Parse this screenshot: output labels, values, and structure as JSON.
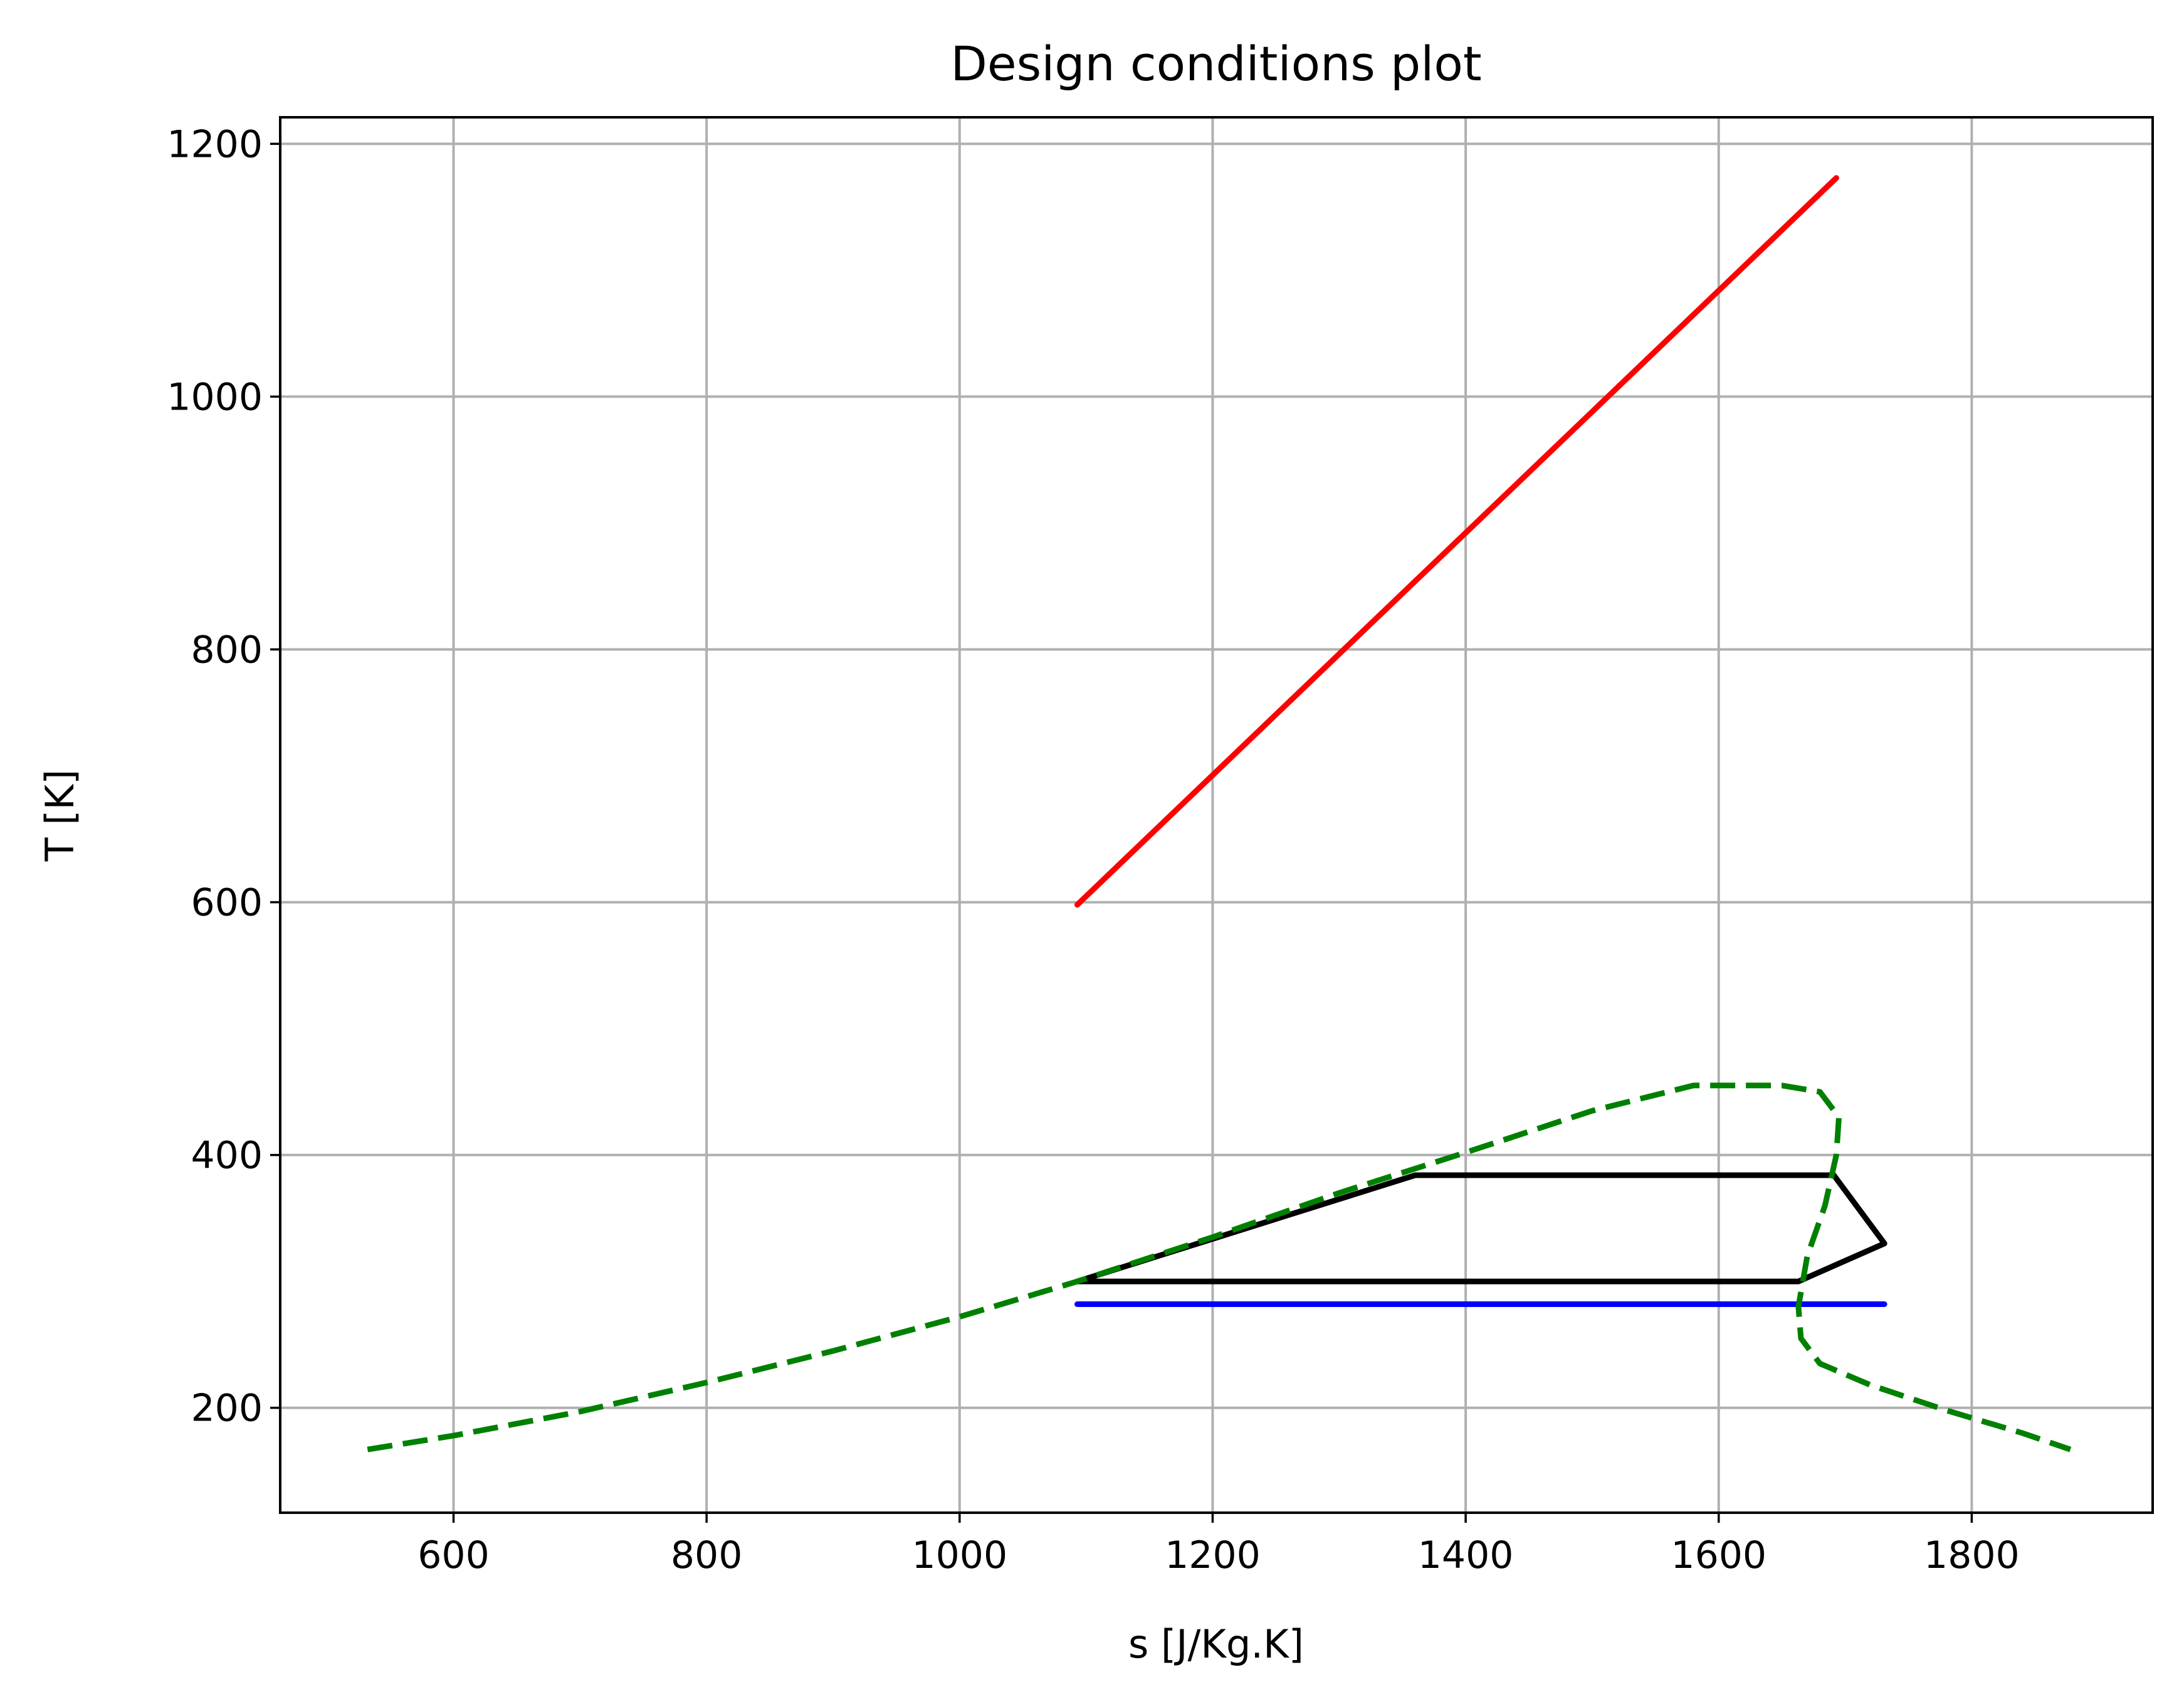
{
  "chart_data": {
    "type": "line",
    "title": "Design conditions plot",
    "xlabel": "s [J/Kg.K]",
    "ylabel": "T [K]",
    "xlim": [
      463,
      1943
    ],
    "ylim": [
      117,
      1221
    ],
    "xticks": [
      600,
      800,
      1000,
      1200,
      1400,
      1600,
      1800
    ],
    "yticks": [
      200,
      400,
      600,
      800,
      1000,
      1200
    ],
    "grid": true,
    "series": [
      {
        "color": "#ff0000",
        "style": "solid",
        "x": [
          1093,
          1693
        ],
        "y": [
          598,
          1173
        ]
      },
      {
        "color": "#0000ff",
        "style": "solid",
        "x": [
          1093,
          1731
        ],
        "y": [
          282,
          282
        ]
      },
      {
        "color": "#000000",
        "style": "solid",
        "x": [
          1093,
          1663,
          1731,
          1691,
          1360,
          1093
        ],
        "y": [
          300,
          300,
          330,
          384,
          384,
          300
        ]
      },
      {
        "color": "#008000",
        "style": "dashed",
        "x": [
          532,
          600,
          700,
          800,
          900,
          1000,
          1093,
          1200,
          1300,
          1400,
          1500,
          1580,
          1650,
          1680,
          1695,
          1693,
          1684,
          1670,
          1663,
          1665,
          1680,
          1720,
          1780,
          1840,
          1878
        ],
        "y": [
          167,
          178,
          197,
          220,
          245,
          272,
          300,
          335,
          370,
          402,
          435,
          455,
          455,
          450,
          430,
          400,
          360,
          320,
          280,
          255,
          235,
          218,
          198,
          180,
          167
        ]
      }
    ]
  }
}
